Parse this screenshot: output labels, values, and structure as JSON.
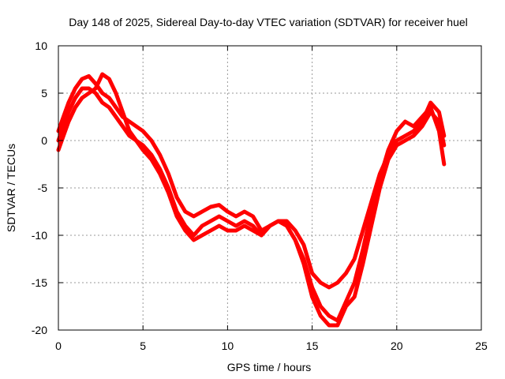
{
  "chart_data": {
    "type": "line",
    "title": "Day 148 of 2025, Sidereal Day-to-day VTEC variation (SDTVAR) for receiver huel",
    "xlabel": "GPS time / hours",
    "ylabel": "SDTVAR / TECUs",
    "xlim": [
      0,
      25
    ],
    "ylim": [
      -20,
      10
    ],
    "xticks": [
      0,
      5,
      10,
      15,
      20,
      25
    ],
    "yticks": [
      -20,
      -15,
      -10,
      -5,
      0,
      5,
      10
    ],
    "grid": true,
    "color": "#ff0000",
    "series": [
      {
        "name": "trace-a",
        "x": [
          0.0,
          0.3,
          0.6,
          1.0,
          1.4,
          1.8,
          2.2,
          2.6,
          3.0,
          3.4,
          3.8,
          4.2,
          4.6,
          5.0,
          5.5,
          6.0,
          6.5,
          7.0,
          7.5,
          8.0,
          8.5,
          9.0,
          9.5,
          10.0,
          10.5,
          11.0,
          11.5,
          12.0,
          12.5,
          13.0,
          13.5,
          14.0,
          14.5,
          15.0,
          15.5,
          16.0,
          16.5,
          17.0,
          17.5,
          18.0,
          18.5,
          19.0,
          19.5,
          20.0,
          20.5,
          21.0,
          21.5,
          22.0,
          22.5,
          22.8
        ],
        "y": [
          1.0,
          2.5,
          4.0,
          5.5,
          6.5,
          6.8,
          6.0,
          5.0,
          4.5,
          3.5,
          2.5,
          2.0,
          1.5,
          1.0,
          0.0,
          -1.5,
          -3.5,
          -6.0,
          -7.5,
          -8.0,
          -7.5,
          -7.0,
          -6.8,
          -7.5,
          -8.0,
          -7.5,
          -8.0,
          -9.5,
          -9.0,
          -8.5,
          -8.5,
          -9.5,
          -11.0,
          -14.0,
          -15.0,
          -15.5,
          -15.0,
          -14.0,
          -12.5,
          -9.5,
          -6.5,
          -3.5,
          -1.5,
          0.0,
          0.5,
          1.0,
          2.0,
          4.0,
          3.0,
          0.5
        ]
      },
      {
        "name": "trace-b",
        "x": [
          0.0,
          0.3,
          0.6,
          1.0,
          1.4,
          1.8,
          2.2,
          2.6,
          3.0,
          3.4,
          3.8,
          4.2,
          4.6,
          5.0,
          5.5,
          6.0,
          6.5,
          7.0,
          7.5,
          8.0,
          8.5,
          9.0,
          9.5,
          10.0,
          10.5,
          11.0,
          11.5,
          12.0,
          12.5,
          13.0,
          13.5,
          14.0,
          14.5,
          15.0,
          15.5,
          16.0,
          16.5,
          17.0,
          17.5,
          18.0,
          18.5,
          19.0,
          19.5,
          20.0,
          20.5,
          21.0,
          21.5,
          22.0,
          22.5,
          22.8
        ],
        "y": [
          0.0,
          1.5,
          3.0,
          4.5,
          5.5,
          5.5,
          5.0,
          4.0,
          3.5,
          2.5,
          1.5,
          0.5,
          0.0,
          -0.5,
          -1.5,
          -3.0,
          -5.0,
          -7.5,
          -9.0,
          -10.0,
          -9.0,
          -8.5,
          -8.0,
          -8.5,
          -9.0,
          -8.5,
          -9.0,
          -10.0,
          -9.0,
          -8.5,
          -9.0,
          -10.5,
          -13.0,
          -16.5,
          -18.5,
          -19.5,
          -19.5,
          -17.5,
          -16.5,
          -13.0,
          -9.0,
          -5.0,
          -2.0,
          -0.5,
          0.0,
          0.5,
          1.5,
          3.0,
          2.0,
          -0.5
        ]
      },
      {
        "name": "trace-c",
        "x": [
          0.0,
          0.3,
          0.6,
          1.0,
          1.4,
          1.8,
          2.2,
          2.6,
          3.0,
          3.4,
          3.8,
          4.2,
          4.6,
          5.0,
          5.5,
          6.0,
          6.5,
          7.0,
          7.5,
          8.0,
          8.5,
          9.0,
          9.5,
          10.0,
          10.5,
          11.0,
          11.5,
          12.0,
          12.5,
          13.0,
          13.5,
          14.0,
          14.5,
          15.0,
          15.5,
          16.0,
          16.5,
          17.0,
          17.5,
          18.0,
          18.5,
          19.0,
          19.5,
          20.0,
          20.5,
          21.0,
          21.5,
          22.0,
          22.5,
          22.8
        ],
        "y": [
          -1.0,
          0.5,
          2.0,
          3.5,
          4.5,
          5.0,
          5.5,
          7.0,
          6.5,
          5.0,
          3.0,
          1.0,
          0.0,
          -1.0,
          -2.0,
          -3.5,
          -5.5,
          -8.0,
          -9.5,
          -10.5,
          -10.0,
          -9.5,
          -9.0,
          -9.5,
          -9.5,
          -9.0,
          -9.5,
          -10.0,
          -9.0,
          -8.5,
          -9.0,
          -10.5,
          -12.5,
          -15.5,
          -17.5,
          -18.5,
          -19.0,
          -17.0,
          -15.0,
          -11.5,
          -7.5,
          -4.0,
          -1.0,
          1.0,
          2.0,
          1.5,
          2.5,
          3.5,
          1.0,
          -2.5
        ]
      }
    ]
  }
}
